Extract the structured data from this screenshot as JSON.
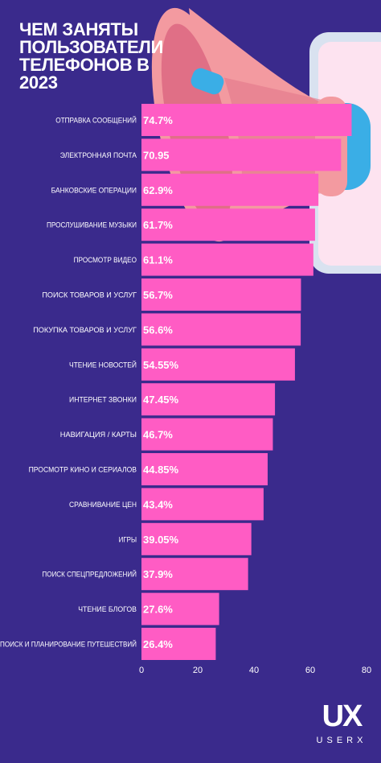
{
  "title_lines": [
    "ЧЕМ ЗАНЯТЫ",
    "ПОЛЬЗОВАТЕЛИ",
    "ТЕЛЕФОНОВ В",
    "2023"
  ],
  "colors": {
    "background": "#3a2a8c",
    "bar": "#ff5cc4",
    "text": "#ffffff",
    "megaphone": "#f39aa0",
    "megaphone_dark": "#e3788a",
    "handle": "#3aaee6",
    "phone_screen": "#fde3f0"
  },
  "logo": {
    "mark": "UX",
    "word": "USERX"
  },
  "chart_data": {
    "type": "bar",
    "orientation": "horizontal",
    "categories": [
      "ОТПРАВКА СООБЩЕНИЙ",
      "ЭЛЕКТРОННАЯ ПОЧТА",
      "БАНКОВСКИЕ ОПЕРАЦИИ",
      "ПРОСЛУШИВАНИЕ МУЗЫКИ",
      "ПРОСМОТР ВИДЕО",
      "ПОИСК ТОВАРОВ И УСЛУГ",
      "ПОКУПКА ТОВАРОВ И УСЛУГ",
      "ЧТЕНИЕ НОВОСТЕЙ",
      "ИНТЕРНЕТ ЗВОНКИ",
      "НАВИГАЦИЯ / КАРТЫ",
      "ПРОСМОТР КИНО И СЕРИАЛОВ",
      "СРАВНИВАНИЕ ЦЕН",
      "ИГРЫ",
      "ПОИСК СПЕЦПРЕДЛОЖЕНИЙ",
      "ЧТЕНИЕ БЛОГОВ",
      "ПОИСК И ПЛАНИРОВАНИЕ ПУТЕШЕСТВИЙ"
    ],
    "values": [
      74.7,
      70.95,
      62.9,
      61.7,
      61.1,
      56.7,
      56.6,
      54.55,
      47.45,
      46.7,
      44.85,
      43.4,
      39.05,
      37.9,
      27.6,
      26.4
    ],
    "data_labels": [
      "74.7%",
      "70.95",
      "62.9%",
      "61.7%",
      "61.1%",
      "56.7%",
      "56.6%",
      "54.55%",
      "47.45%",
      "46.7%",
      "44.85%",
      "43.4%",
      "39.05%",
      "37.9%",
      "27.6%",
      "26.4%"
    ],
    "xlim": [
      0,
      80
    ],
    "xticks": [
      "0",
      "20",
      "40",
      "60",
      "80"
    ],
    "grid": false,
    "legend": "none"
  }
}
